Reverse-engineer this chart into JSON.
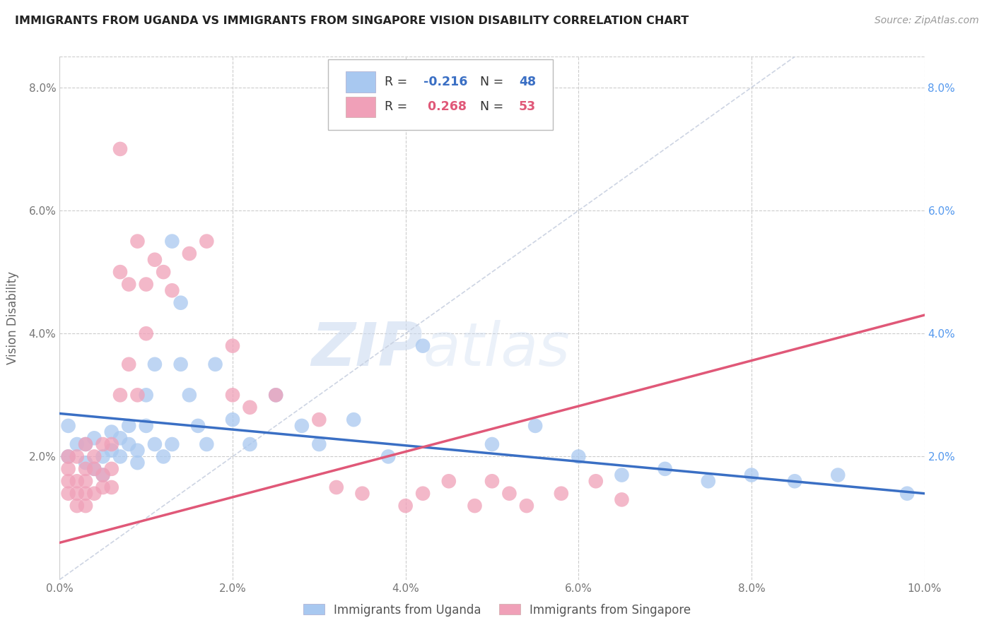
{
  "title": "IMMIGRANTS FROM UGANDA VS IMMIGRANTS FROM SINGAPORE VISION DISABILITY CORRELATION CHART",
  "source": "Source: ZipAtlas.com",
  "ylabel": "Vision Disability",
  "xlim": [
    0.0,
    0.1
  ],
  "ylim": [
    0.0,
    0.085
  ],
  "x_ticks": [
    0.0,
    0.02,
    0.04,
    0.06,
    0.08,
    0.1
  ],
  "y_ticks": [
    0.0,
    0.02,
    0.04,
    0.06,
    0.08
  ],
  "x_tick_labels": [
    "0.0%",
    "2.0%",
    "4.0%",
    "6.0%",
    "8.0%",
    "10.0%"
  ],
  "y_tick_labels_left": [
    "",
    "2.0%",
    "4.0%",
    "6.0%",
    "8.0%"
  ],
  "y_tick_labels_right": [
    "",
    "2.0%",
    "4.0%",
    "6.0%",
    "8.0%"
  ],
  "uganda_color": "#a8c8f0",
  "singapore_color": "#f0a0b8",
  "uganda_R": -0.216,
  "uganda_N": 48,
  "singapore_R": 0.268,
  "singapore_N": 53,
  "uganda_line_color": "#3a6fc4",
  "singapore_line_color": "#e05878",
  "dashed_line_color": "#c8d0e0",
  "watermark_zip": "ZIP",
  "watermark_atlas": "atlas",
  "uganda_line_x0": 0.0,
  "uganda_line_y0": 0.027,
  "uganda_line_x1": 0.1,
  "uganda_line_y1": 0.014,
  "singapore_line_x0": 0.0,
  "singapore_line_y0": 0.006,
  "singapore_line_x1": 0.1,
  "singapore_line_y1": 0.043,
  "uganda_points_x": [
    0.001,
    0.001,
    0.002,
    0.003,
    0.003,
    0.004,
    0.004,
    0.005,
    0.005,
    0.006,
    0.006,
    0.007,
    0.007,
    0.008,
    0.008,
    0.009,
    0.009,
    0.01,
    0.01,
    0.011,
    0.011,
    0.012,
    0.013,
    0.013,
    0.014,
    0.014,
    0.015,
    0.016,
    0.017,
    0.018,
    0.02,
    0.022,
    0.025,
    0.028,
    0.03,
    0.034,
    0.038,
    0.042,
    0.05,
    0.055,
    0.06,
    0.065,
    0.07,
    0.075,
    0.08,
    0.085,
    0.09,
    0.098
  ],
  "uganda_points_y": [
    0.02,
    0.025,
    0.022,
    0.022,
    0.019,
    0.018,
    0.023,
    0.02,
    0.017,
    0.024,
    0.021,
    0.023,
    0.02,
    0.025,
    0.022,
    0.021,
    0.019,
    0.03,
    0.025,
    0.035,
    0.022,
    0.02,
    0.055,
    0.022,
    0.045,
    0.035,
    0.03,
    0.025,
    0.022,
    0.035,
    0.026,
    0.022,
    0.03,
    0.025,
    0.022,
    0.026,
    0.02,
    0.038,
    0.022,
    0.025,
    0.02,
    0.017,
    0.018,
    0.016,
    0.017,
    0.016,
    0.017,
    0.014
  ],
  "singapore_points_x": [
    0.001,
    0.001,
    0.001,
    0.001,
    0.002,
    0.002,
    0.002,
    0.002,
    0.003,
    0.003,
    0.003,
    0.003,
    0.003,
    0.004,
    0.004,
    0.004,
    0.005,
    0.005,
    0.005,
    0.006,
    0.006,
    0.006,
    0.007,
    0.007,
    0.007,
    0.008,
    0.008,
    0.009,
    0.009,
    0.01,
    0.01,
    0.011,
    0.012,
    0.013,
    0.015,
    0.017,
    0.02,
    0.02,
    0.022,
    0.025,
    0.03,
    0.032,
    0.035,
    0.04,
    0.042,
    0.045,
    0.048,
    0.05,
    0.052,
    0.054,
    0.058,
    0.062,
    0.065
  ],
  "singapore_points_y": [
    0.014,
    0.016,
    0.018,
    0.02,
    0.012,
    0.014,
    0.016,
    0.02,
    0.012,
    0.014,
    0.016,
    0.018,
    0.022,
    0.014,
    0.018,
    0.02,
    0.015,
    0.017,
    0.022,
    0.015,
    0.018,
    0.022,
    0.03,
    0.05,
    0.07,
    0.035,
    0.048,
    0.03,
    0.055,
    0.04,
    0.048,
    0.052,
    0.05,
    0.047,
    0.053,
    0.055,
    0.038,
    0.03,
    0.028,
    0.03,
    0.026,
    0.015,
    0.014,
    0.012,
    0.014,
    0.016,
    0.012,
    0.016,
    0.014,
    0.012,
    0.014,
    0.016,
    0.013
  ]
}
